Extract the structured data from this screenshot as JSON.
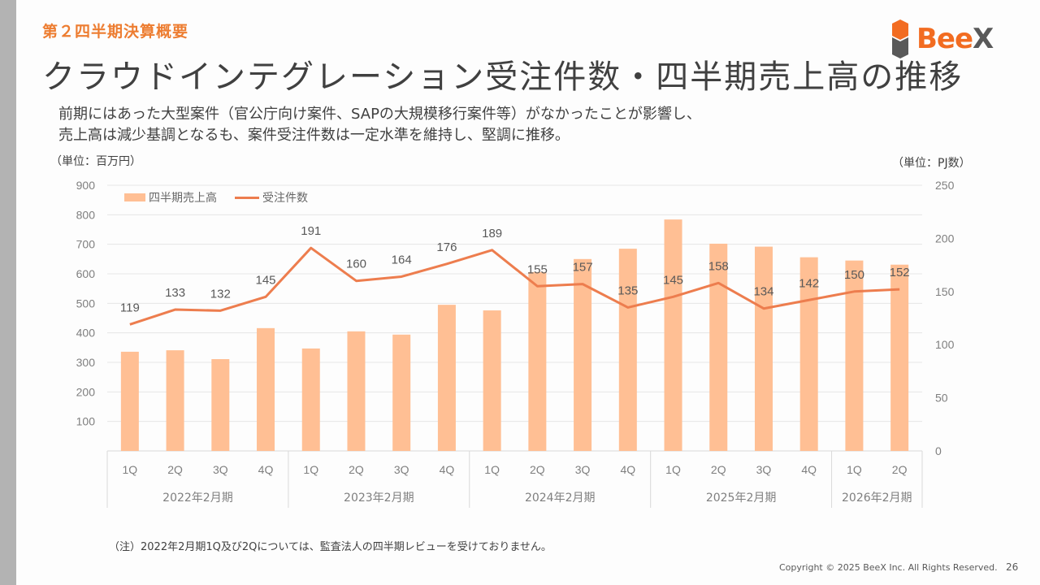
{
  "header": {
    "section_label": "第２四半期決算概要",
    "title": "クラウドインテグレーション受注件数・四半期売上高の推移",
    "logo": {
      "text_orange": "Bee",
      "text_gray": "X",
      "brand_color": "#f26c21",
      "gray_color": "#595959"
    }
  },
  "summary": {
    "line1": "前期にはあった大型案件（官公庁向け案件、SAPの大規模移行案件等）がなかったことが影響し、",
    "line2": "売上高は減少基調となるも、案件受注件数は一定水準を維持し、堅調に推移。"
  },
  "units": {
    "left": "（単位：百万円）",
    "right": "（単位：PJ数）"
  },
  "chart_data": {
    "type": "bar",
    "title": "",
    "legend": [
      "四半期売上高",
      "受注件数"
    ],
    "legend_position": "top-left",
    "categories": [
      "1Q",
      "2Q",
      "3Q",
      "4Q",
      "1Q",
      "2Q",
      "3Q",
      "4Q",
      "1Q",
      "2Q",
      "3Q",
      "4Q",
      "1Q",
      "2Q",
      "3Q",
      "4Q",
      "1Q",
      "2Q"
    ],
    "groups": [
      {
        "label": "2022年2月期",
        "count": 4
      },
      {
        "label": "2023年2月期",
        "count": 4
      },
      {
        "label": "2024年2月期",
        "count": 4
      },
      {
        "label": "2025年2月期",
        "count": 4
      },
      {
        "label": "2026年2月期",
        "count": 2
      }
    ],
    "series": [
      {
        "name": "四半期売上高",
        "type": "bar",
        "axis": "left",
        "color": "#ffbf94",
        "values": [
          336,
          341,
          311,
          416,
          347,
          405,
          394,
          495,
          476,
          606,
          650,
          685,
          784,
          702,
          692,
          656,
          645,
          631
        ]
      },
      {
        "name": "受注件数",
        "type": "line",
        "axis": "right",
        "color": "#ed7d4e",
        "values": [
          119,
          133,
          132,
          145,
          191,
          160,
          164,
          176,
          189,
          155,
          157,
          135,
          145,
          158,
          134,
          142,
          150,
          152
        ],
        "data_labels": true
      }
    ],
    "y_left": {
      "min": 0,
      "max": 900,
      "ticks": [
        100,
        200,
        300,
        400,
        500,
        600,
        700,
        800,
        900
      ],
      "label": "（単位：百万円）"
    },
    "y_right": {
      "min": 0,
      "max": 250,
      "ticks": [
        0,
        50,
        100,
        150,
        200,
        250
      ],
      "label": "（単位：PJ数）"
    },
    "grid": true
  },
  "footnote": "（注）2022年2月期1Q及び2Qについては、監査法人の四半期レビューを受けておりません。",
  "footer": {
    "copyright": "Copyright © 2025 BeeX Inc. All Rights Reserved.",
    "page_number": "26"
  }
}
